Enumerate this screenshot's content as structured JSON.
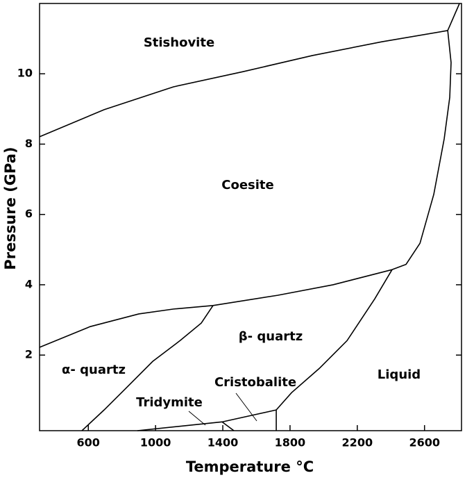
{
  "chart_data": {
    "type": "line",
    "x_label": "Temperature °C",
    "y_label": "Pressure (GPa)",
    "xlim": [
      310,
      2820
    ],
    "ylim": [
      -0.15,
      12
    ],
    "xticks": [
      600,
      1000,
      1400,
      1800,
      2200,
      2600
    ],
    "yticks": [
      2,
      4,
      6,
      8,
      10
    ],
    "color": "#000000",
    "series": [
      {
        "x": [
          310,
          694,
          1107,
          1520,
          1933,
          2345,
          2738
        ],
        "values": [
          8.21,
          8.98,
          9.63,
          10.06,
          10.52,
          10.91,
          11.23
        ]
      },
      {
        "x": [
          2738,
          2808
        ],
        "values": [
          11.23,
          12.0
        ]
      },
      {
        "x": [
          2738,
          2758,
          2750,
          2717,
          2655,
          2573,
          2490,
          2407
        ],
        "values": [
          11.23,
          10.32,
          9.33,
          8.15,
          6.57,
          5.18,
          4.58,
          4.43
        ]
      },
      {
        "x": [
          310,
          611,
          900,
          1107,
          1342,
          1726,
          2056,
          2407
        ],
        "values": [
          2.22,
          2.81,
          3.17,
          3.31,
          3.41,
          3.7,
          4.0,
          4.43
        ]
      },
      {
        "x": [
          1342,
          1272,
          1148,
          983,
          818,
          694,
          562
        ],
        "values": [
          3.41,
          2.91,
          2.42,
          1.82,
          1.03,
          0.44,
          -0.15
        ]
      },
      {
        "x": [
          2407,
          2304,
          2139,
          1974,
          1809,
          1718
        ],
        "values": [
          4.43,
          3.6,
          2.41,
          1.62,
          0.93,
          0.44
        ]
      },
      {
        "x": [
          1718,
          1718
        ],
        "values": [
          0.44,
          -0.15
        ]
      },
      {
        "x": [
          892,
          1396,
          1718
        ],
        "values": [
          -0.15,
          0.1,
          0.44
        ]
      },
      {
        "x": [
          1396,
          1466
        ],
        "values": [
          0.1,
          -0.15
        ]
      }
    ],
    "annotations": [
      "Stishovite",
      "Coesite",
      "β- quartz",
      "α- quartz",
      "Cristobalite",
      "Liquid",
      "Tridymite"
    ]
  }
}
